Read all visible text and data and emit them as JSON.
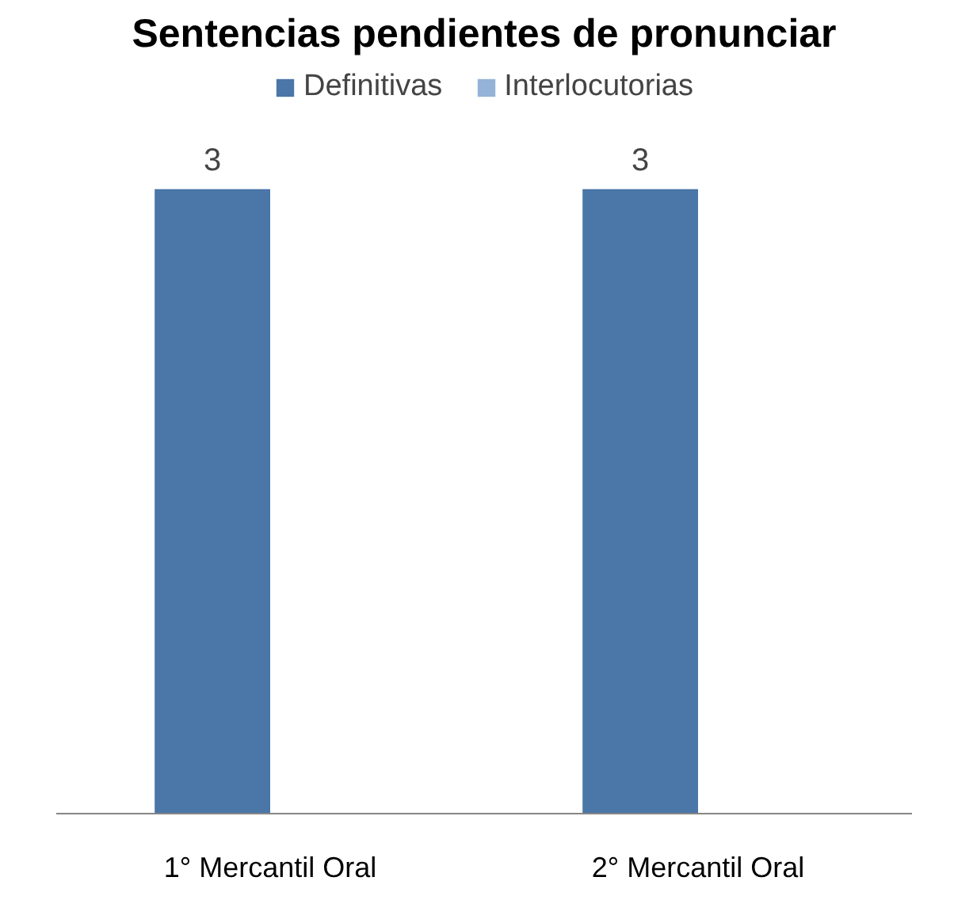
{
  "chart_data": {
    "type": "bar",
    "title": "Sentencias pendientes de pronunciar",
    "categories": [
      "1° Mercantil Oral",
      "2° Mercantil Oral"
    ],
    "series": [
      {
        "name": "Definitivas",
        "color": "#4a76a8",
        "values": [
          3,
          3
        ],
        "value_labels": [
          "3",
          "3"
        ]
      },
      {
        "name": "Interlocutorias",
        "color": "#95b3d7",
        "values": [
          0,
          0
        ]
      }
    ],
    "legend": "top",
    "grid": false
  }
}
